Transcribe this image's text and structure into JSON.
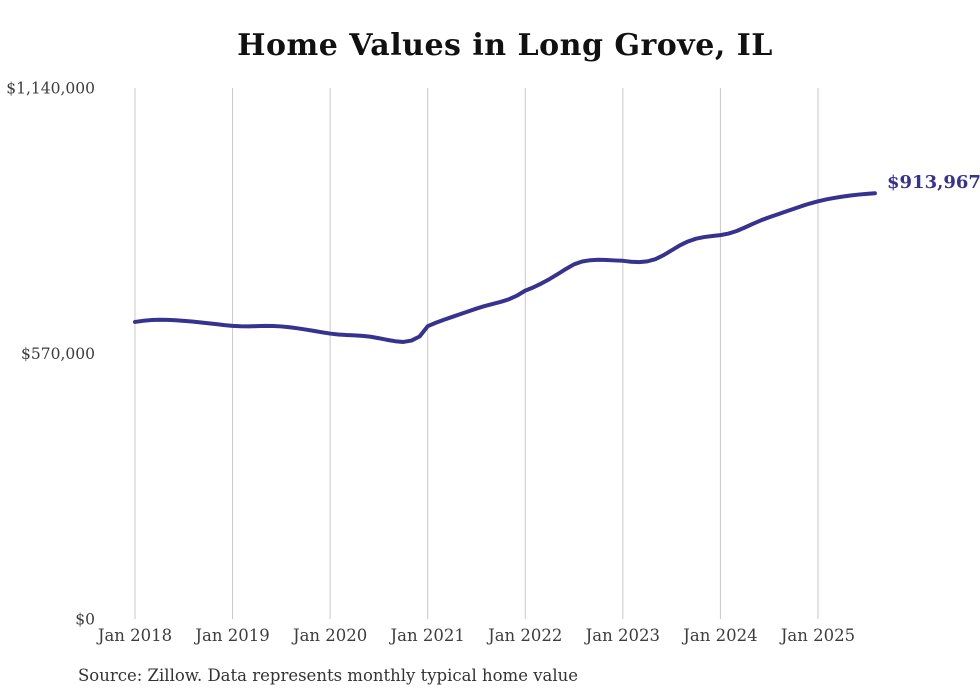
{
  "title": "Home Values in Long Grove, IL",
  "latest_value_label": "$913,967",
  "source_note": "Source: Zillow. Data represents monthly typical home value",
  "colors": {
    "line": "#37328f",
    "grid": "#c8c8c8",
    "axis_text": "#3d3d3d",
    "title_text": "#111111",
    "latest_label_text": "#37328f",
    "source_text": "#333333",
    "background": "#ffffff"
  },
  "chart_data": {
    "type": "line",
    "title": "Home Values in Long Grove, IL",
    "xlabel": "",
    "ylabel": "",
    "x_start_month": "2018-01",
    "x_end_month": "2025-08",
    "x_tick_labels": [
      "Jan 2018",
      "Jan 2019",
      "Jan 2020",
      "Jan 2021",
      "Jan 2022",
      "Jan 2023",
      "Jan 2024",
      "Jan 2025"
    ],
    "y_ticks": [
      {
        "label": "$0",
        "value": 0
      },
      {
        "label": "$570,000",
        "value": 570000
      },
      {
        "label": "$1,140,000",
        "value": 1140000
      }
    ],
    "ylim": [
      0,
      1140000
    ],
    "grid": "vertical-only",
    "legend_position": "none",
    "latest_value": 913967,
    "series": [
      {
        "name": "Monthly typical home value",
        "unit": "USD",
        "values": [
          637800,
          640200,
          641800,
          642400,
          642100,
          641300,
          640100,
          638600,
          636900,
          635000,
          633000,
          631000,
          629400,
          628500,
          628300,
          628800,
          629300,
          629100,
          628100,
          626400,
          624100,
          621400,
          618500,
          615500,
          612800,
          610900,
          609700,
          608900,
          607800,
          605900,
          602800,
          599300,
          596400,
          594800,
          597800,
          606500,
          628600,
          636000,
          642500,
          648500,
          654500,
          660500,
          666500,
          671800,
          676500,
          681000,
          686500,
          694500,
          705000,
          712000,
          720500,
          730000,
          740500,
          751500,
          761500,
          767500,
          770300,
          771200,
          770800,
          769800,
          769000,
          767000,
          766200,
          767800,
          772500,
          781000,
          791500,
          802000,
          810500,
          816500,
          820000,
          822200,
          824200,
          827500,
          833000,
          840500,
          848500,
          856000,
          862500,
          868500,
          874500,
          880500,
          886500,
          892000,
          896800,
          900800,
          904000,
          906800,
          909200,
          911200,
          912800,
          913967
        ]
      }
    ]
  }
}
